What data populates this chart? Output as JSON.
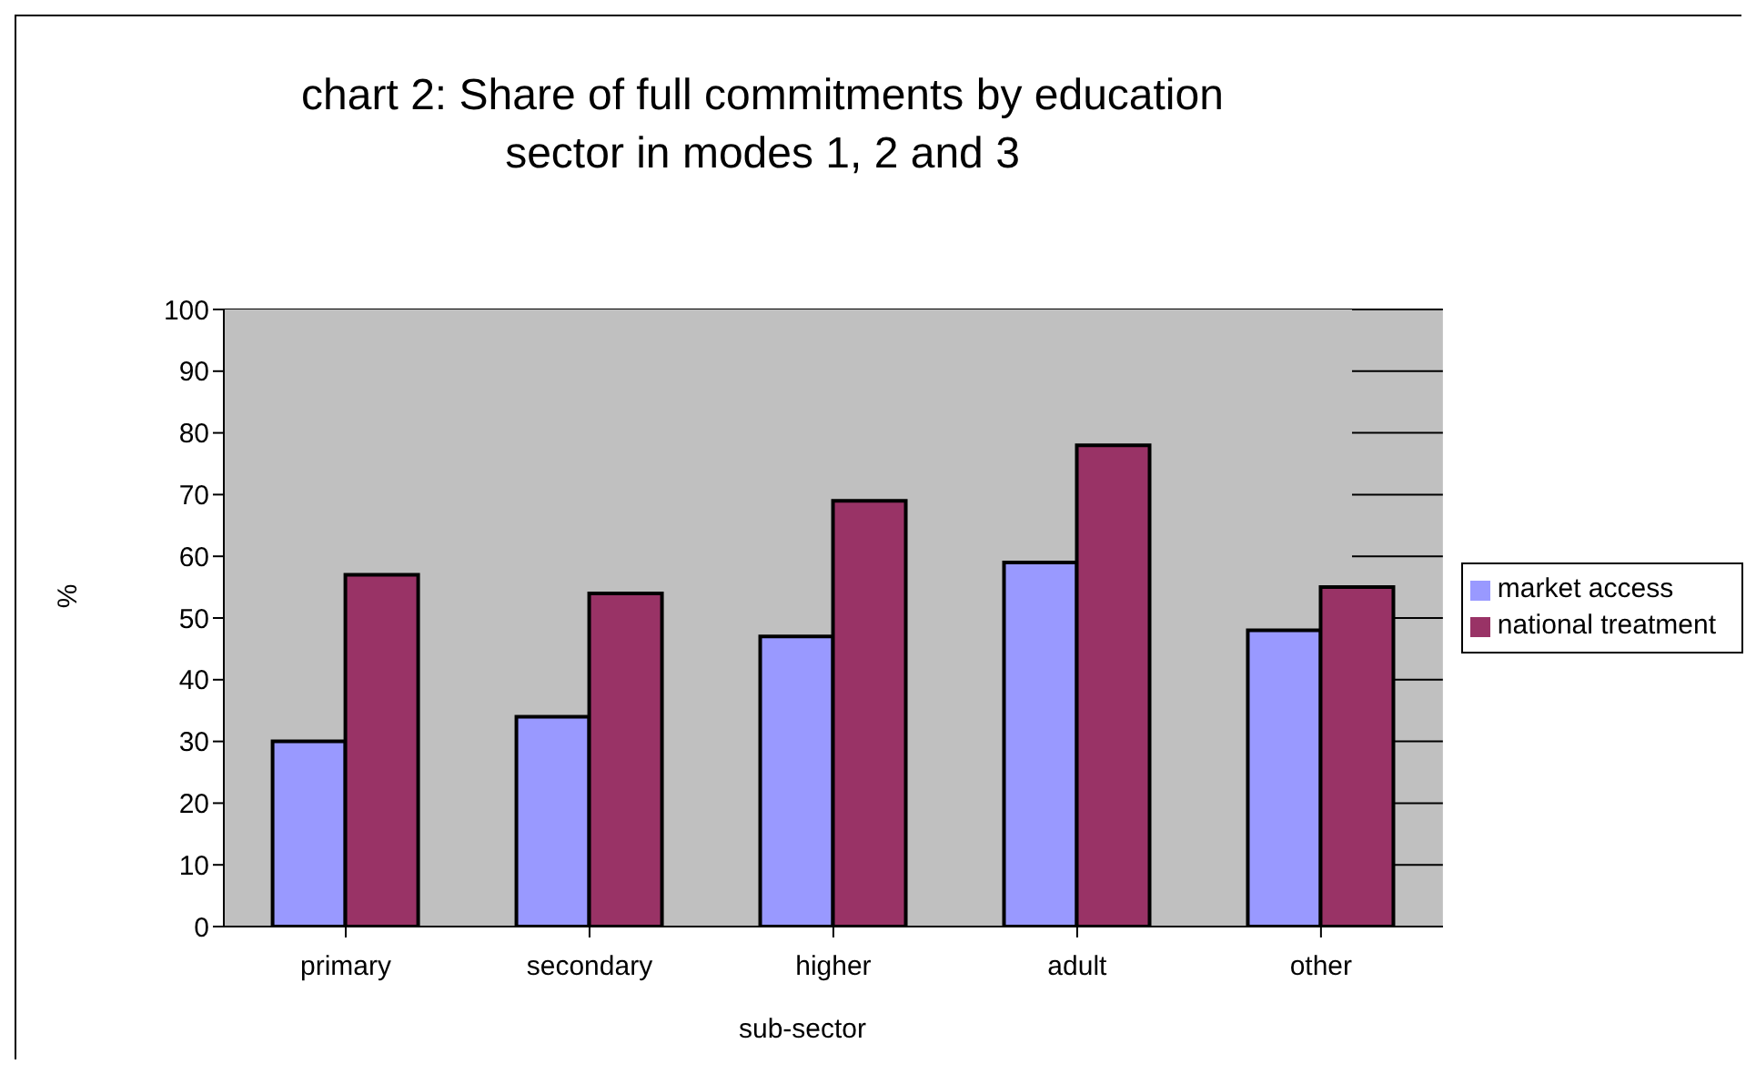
{
  "chart_data": {
    "type": "bar",
    "title": "chart 2: Share of full commitments by education sector in modes 1, 2 and 3",
    "xlabel": "sub-sector",
    "ylabel": "%",
    "categories": [
      "primary",
      "secondary",
      "higher",
      "adult",
      "other"
    ],
    "series": [
      {
        "name": "market access",
        "color": "#9999ff",
        "values": [
          30,
          34,
          47,
          59,
          48
        ]
      },
      {
        "name": "national treatment",
        "color": "#993366",
        "values": [
          57,
          54,
          69,
          78,
          55
        ]
      }
    ],
    "ylim": [
      0,
      100
    ],
    "yticks": [
      0,
      10,
      20,
      30,
      40,
      50,
      60,
      70,
      80,
      90,
      100
    ],
    "grid": "y",
    "legend": "right"
  }
}
